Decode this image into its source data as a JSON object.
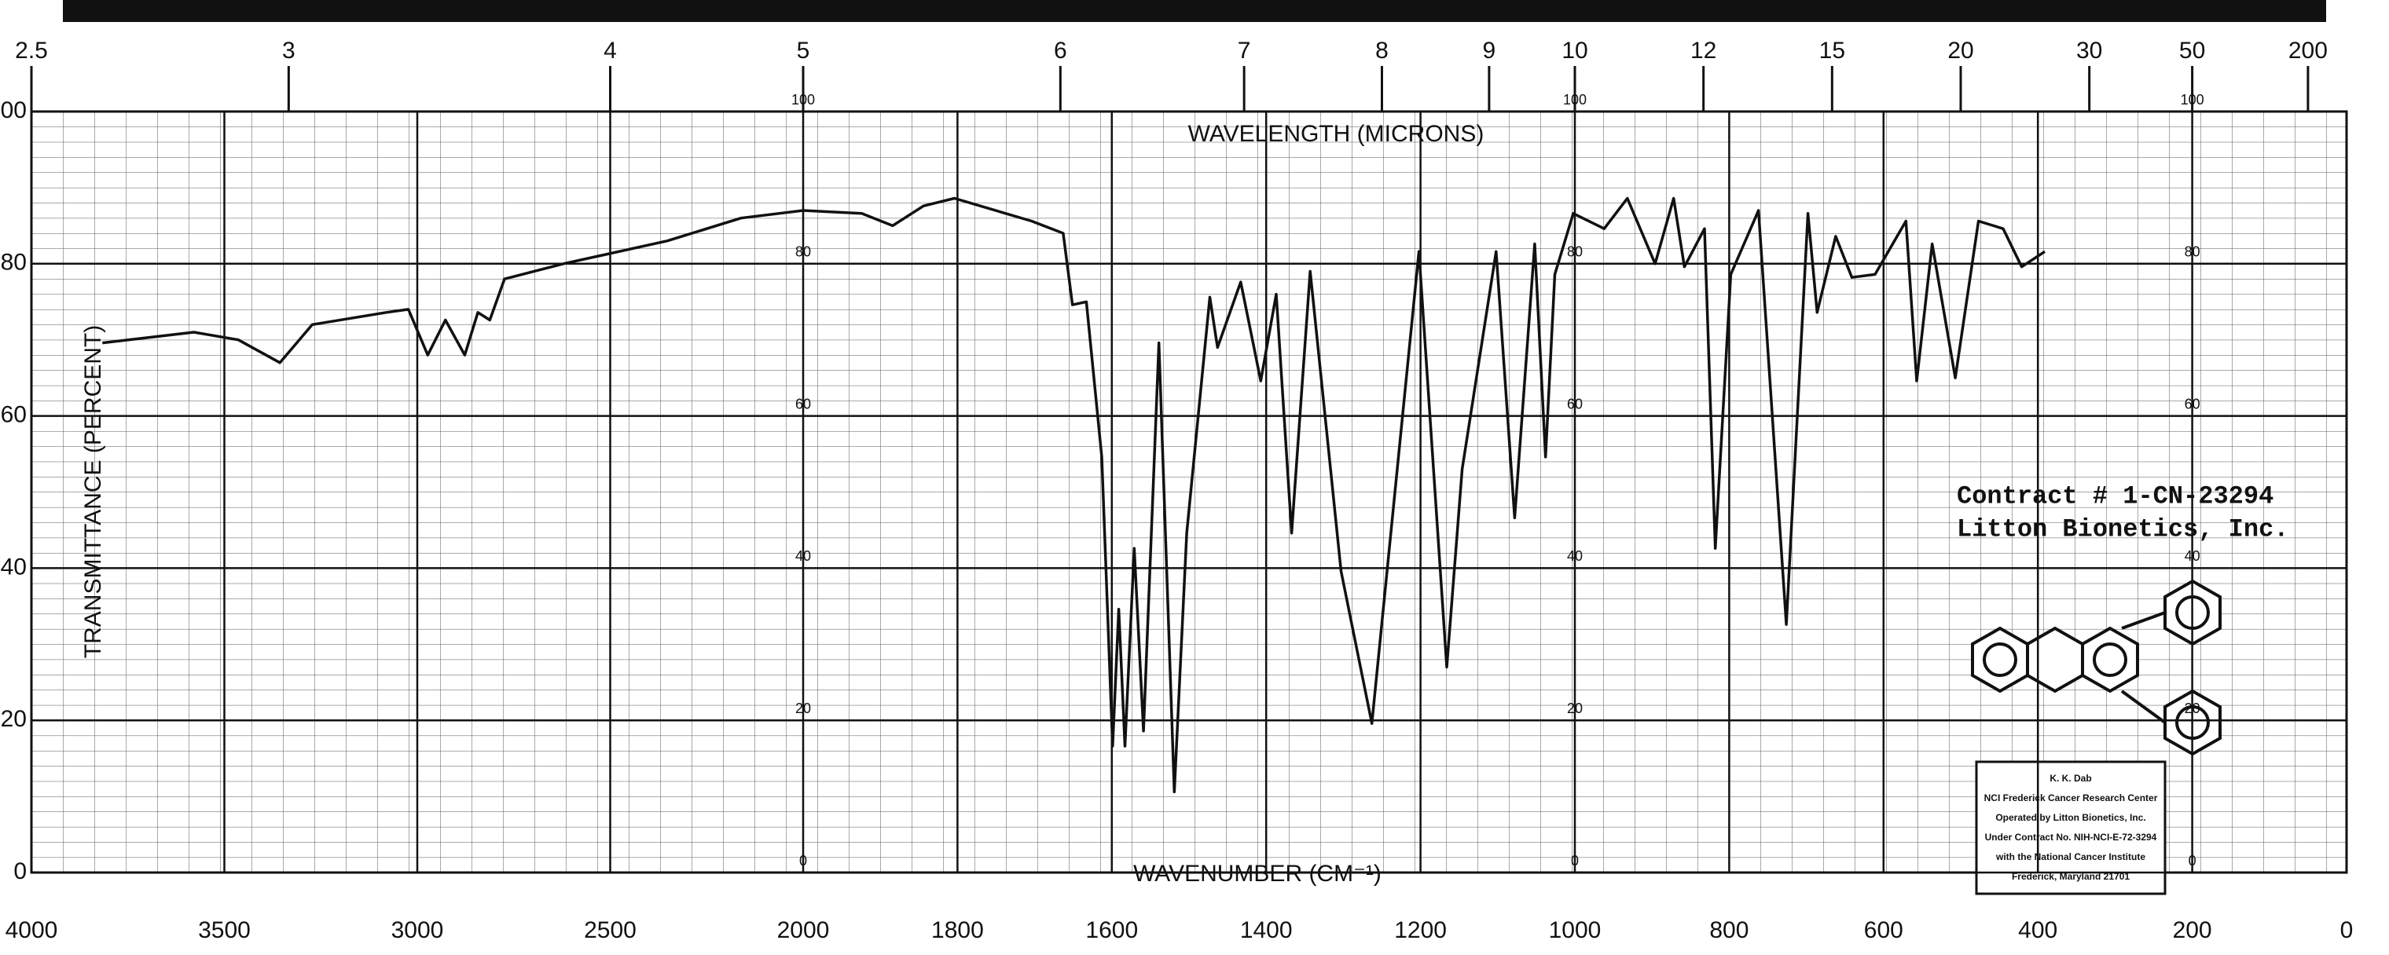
{
  "chart_data": {
    "type": "line",
    "title": "WAVELENGTH (MICRONS)",
    "x_label": "WAVENUMBER (CM⁻¹)",
    "y_label": "TRANSMITTANCE (PERCENT)",
    "xlim": [
      4000,
      0
    ],
    "x_scale_break": 2000,
    "x_scale_factor_above_break": 2,
    "xticks": [
      4000,
      3500,
      3000,
      2500,
      2000,
      1800,
      1600,
      1400,
      1200,
      1000,
      800,
      600,
      400,
      200,
      0
    ],
    "wavelength_ticks": [
      2.5,
      3,
      4,
      5,
      6,
      7,
      8,
      9,
      10,
      12,
      15,
      20,
      30,
      50,
      200
    ],
    "ylim": [
      0,
      100
    ],
    "yticks": [
      0,
      20,
      40,
      60,
      80,
      100
    ],
    "grid": true,
    "series": [
      {
        "color": "#111111",
        "x": [
          3816,
          3579,
          3464,
          3356,
          3272,
          3080,
          3023,
          2973,
          2927,
          2877,
          2843,
          2812,
          2774,
          2621,
          2352,
          2161,
          2000,
          1924,
          1884,
          1844,
          1804,
          1704,
          1663,
          1651,
          1633,
          1613,
          1599,
          1591,
          1583,
          1571,
          1559,
          1539,
          1519,
          1503,
          1473,
          1463,
          1433,
          1407,
          1387,
          1367,
          1343,
          1303,
          1263,
          1202,
          1166,
          1146,
          1102,
          1078,
          1052,
          1038,
          1026,
          1002,
          962,
          932,
          896,
          872,
          858,
          832,
          818,
          798,
          762,
          726,
          698,
          686,
          662,
          641,
          611,
          571,
          557,
          537,
          507,
          477,
          445,
          421,
          391
        ],
        "values": [
          69.6,
          71,
          70,
          67,
          72,
          73.6,
          74,
          68,
          72.6,
          68,
          73.6,
          72.6,
          78,
          80,
          83,
          86,
          87,
          86.6,
          85,
          87.6,
          88.6,
          85.6,
          84,
          74.6,
          75,
          54.6,
          16.6,
          34.6,
          16.6,
          42.6,
          18.6,
          69.6,
          10.6,
          44.6,
          75.6,
          69,
          77.6,
          64.6,
          76,
          44.6,
          79,
          39.6,
          19.6,
          81.6,
          27,
          53,
          81.6,
          46.6,
          82.6,
          54.6,
          78.6,
          86.6,
          84.6,
          88.6,
          80,
          88.6,
          79.6,
          84.6,
          42.6,
          78.6,
          87,
          32.6,
          86.6,
          73.6,
          83.6,
          78.2,
          78.6,
          85.6,
          64.6,
          82.6,
          65,
          85.6,
          84.6,
          79.6,
          81.6
        ]
      }
    ],
    "annotations": [
      "Contract # 1-CN-23294",
      "Litton Bionetics, Inc."
    ],
    "credit_box": [
      "K. K. Dab",
      "NCI Frederick Cancer Research Center",
      "Operated by Litton Bionetics, Inc.",
      "Under Contract No. NIH-NCI-E-72-3294",
      "with the National Cancer Institute",
      "Frederick, Maryland 21701"
    ]
  }
}
